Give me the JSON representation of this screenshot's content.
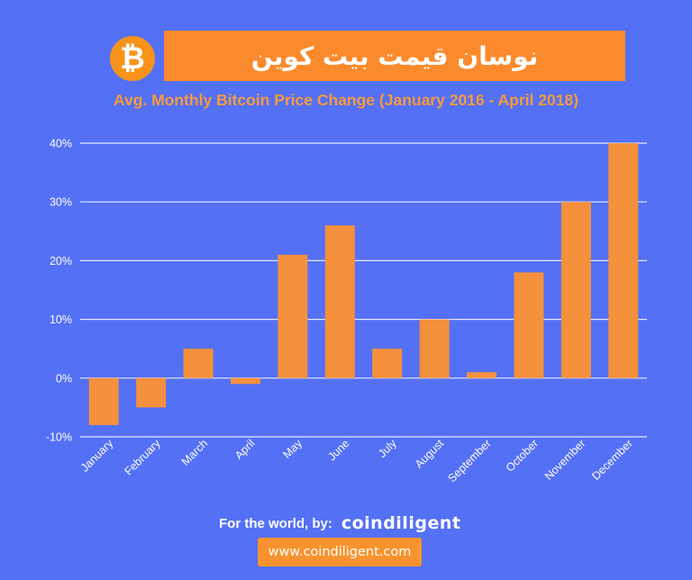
{
  "header": {
    "logo_glyph": "₿",
    "title": "نوسان قیمت بیت کوین"
  },
  "footer": {
    "prefix": "For the world, by:",
    "brand": "coindiligent",
    "url": "www.coindiligent.com"
  },
  "colors": {
    "background": "#5470f5",
    "bar": "#f5903c",
    "title_box": "#fb8a2c",
    "subtitle": "#f99a3c",
    "gridline": "#ffffff",
    "logo": "#f7931a"
  },
  "chart_data": {
    "type": "bar",
    "title": "Avg. Monthly Bitcoin Price Change (January 2016 - April 2018)",
    "xlabel": "",
    "ylabel": "",
    "categories": [
      "January",
      "February",
      "March",
      "April",
      "May",
      "June",
      "July",
      "August",
      "September",
      "October",
      "November",
      "December"
    ],
    "values": [
      -8,
      -5,
      5,
      -1,
      21,
      26,
      5,
      10,
      1,
      18,
      30,
      40
    ],
    "ylim": [
      -10,
      40
    ],
    "yticks": [
      -10,
      0,
      10,
      20,
      30,
      40
    ],
    "ytick_labels": [
      "-10%",
      "0%",
      "10%",
      "20%",
      "30%",
      "40%"
    ],
    "grid": true,
    "legend": "none"
  }
}
